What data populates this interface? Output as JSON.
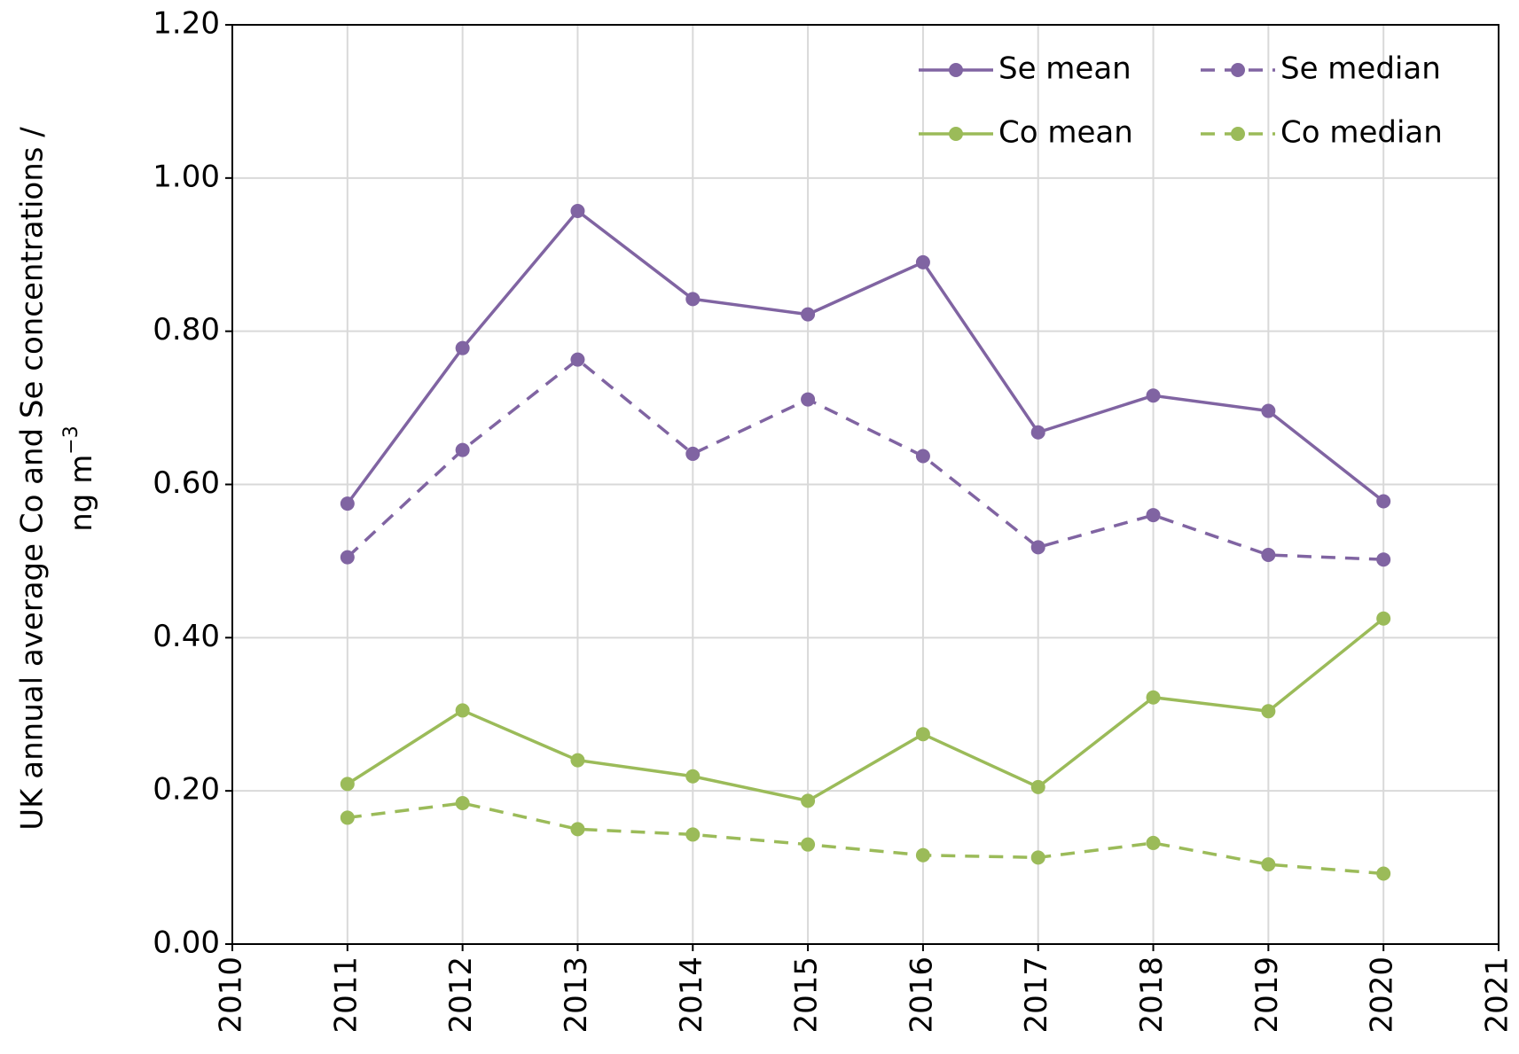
{
  "chart_data": {
    "type": "line",
    "y_label": "UK annual average Co and Se concentrations /",
    "y_label_unit": "ng m",
    "y_label_unit_sup": "−3",
    "x": [
      2011,
      2012,
      2013,
      2014,
      2015,
      2016,
      2017,
      2018,
      2019,
      2020
    ],
    "series": [
      {
        "name": "Se mean",
        "color": "#8064a2",
        "dashed": false,
        "values": [
          0.575,
          0.778,
          0.957,
          0.842,
          0.822,
          0.89,
          0.668,
          0.716,
          0.696,
          0.578
        ]
      },
      {
        "name": "Se median",
        "color": "#8064a2",
        "dashed": true,
        "values": [
          0.505,
          0.645,
          0.763,
          0.64,
          0.711,
          0.637,
          0.518,
          0.56,
          0.508,
          0.502
        ]
      },
      {
        "name": "Co mean",
        "color": "#9bbb59",
        "dashed": false,
        "values": [
          0.209,
          0.305,
          0.24,
          0.219,
          0.187,
          0.274,
          0.205,
          0.322,
          0.304,
          0.425
        ]
      },
      {
        "name": "Co median",
        "color": "#9bbb59",
        "dashed": true,
        "values": [
          0.165,
          0.184,
          0.15,
          0.143,
          0.13,
          0.116,
          0.113,
          0.132,
          0.104,
          0.092
        ]
      }
    ],
    "xlim": [
      2010,
      2021
    ],
    "xticks": [
      2010,
      2011,
      2012,
      2013,
      2014,
      2015,
      2016,
      2017,
      2018,
      2019,
      2020,
      2021
    ],
    "ylim": [
      0,
      1.2
    ],
    "yticks": [
      {
        "value": 0,
        "label": "0.00"
      },
      {
        "value": 0.2,
        "label": "0.20"
      },
      {
        "value": 0.4,
        "label": "0.40"
      },
      {
        "value": 0.6,
        "label": "0.60"
      },
      {
        "value": 0.8,
        "label": "0.80"
      },
      {
        "value": 1.0,
        "label": "1.00"
      },
      {
        "value": 1.2,
        "label": "1.20"
      }
    ],
    "grid": true,
    "legend": "top-right"
  }
}
